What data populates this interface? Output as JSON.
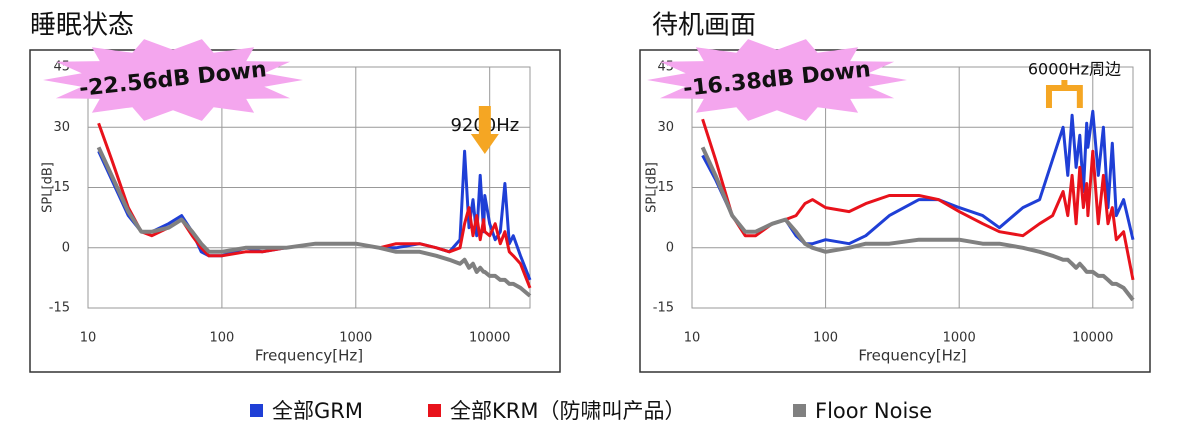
{
  "chart_data": [
    {
      "type": "line",
      "title": "睡眠状态",
      "xlabel": "Frequency[Hz]",
      "ylabel": "SPL[dB]",
      "log_x": true,
      "grid": true,
      "xlim": [
        10,
        20000
      ],
      "xticks": [
        10,
        100,
        1000,
        10000
      ],
      "ylim": [
        -15,
        45
      ],
      "yticks": [
        -15,
        0,
        15,
        30,
        45
      ],
      "callout": "-22.56dB Down",
      "marker_label": "9200Hz",
      "x": [
        12,
        15,
        20,
        25,
        30,
        40,
        50,
        60,
        70,
        80,
        100,
        150,
        200,
        300,
        500,
        700,
        1000,
        1500,
        2000,
        3000,
        4000,
        5000,
        6000,
        6500,
        7000,
        7500,
        8000,
        8500,
        9000,
        9200,
        10000,
        11000,
        12000,
        13000,
        14000,
        15000,
        17000,
        20000
      ],
      "series": [
        {
          "name": "全部GRM",
          "color": "#1f3fd6",
          "values": [
            24,
            17,
            8,
            4,
            4,
            6,
            8,
            4,
            -1,
            -2,
            -2,
            0,
            -1,
            0,
            1,
            1,
            1,
            0,
            0,
            1,
            0,
            -1,
            2,
            24,
            5,
            12,
            3,
            18,
            4,
            13,
            6,
            2,
            4,
            16,
            1,
            3,
            -2,
            -8
          ]
        },
        {
          "name": "全部KRM（防啸叫产品）",
          "color": "#e8121b",
          "values": [
            31,
            22,
            10,
            4,
            3,
            5,
            7,
            3,
            0,
            -2,
            -2,
            -1,
            -1,
            0,
            1,
            1,
            1,
            0,
            1,
            1,
            0,
            -1,
            0,
            6,
            10,
            3,
            8,
            2,
            7,
            4,
            3,
            6,
            1,
            4,
            -1,
            -2,
            -4,
            -10
          ]
        },
        {
          "name": "Floor Noise",
          "color": "#808080",
          "values": [
            25,
            18,
            9,
            4,
            4,
            5,
            7,
            4,
            1,
            -1,
            -1,
            0,
            0,
            0,
            1,
            1,
            1,
            0,
            -1,
            -1,
            -2,
            -3,
            -4,
            -3,
            -5,
            -4,
            -6,
            -5,
            -6,
            -6,
            -7,
            -7,
            -8,
            -8,
            -9,
            -9,
            -10,
            -12
          ]
        }
      ]
    },
    {
      "type": "line",
      "title": "待机画面",
      "xlabel": "Frequency[Hz]",
      "ylabel": "SPL[dB]",
      "log_x": true,
      "grid": true,
      "xlim": [
        10,
        20000
      ],
      "xticks": [
        10,
        100,
        1000,
        10000
      ],
      "ylim": [
        -15,
        45
      ],
      "yticks": [
        -15,
        0,
        15,
        30,
        45
      ],
      "callout": "-16.38dB Down",
      "marker_label": "6000Hz周边",
      "x": [
        12,
        15,
        20,
        25,
        30,
        40,
        50,
        60,
        70,
        80,
        100,
        150,
        200,
        300,
        500,
        700,
        1000,
        1500,
        2000,
        3000,
        4000,
        5000,
        6000,
        6500,
        7000,
        7500,
        8000,
        8500,
        9000,
        9200,
        10000,
        11000,
        12000,
        13000,
        14000,
        15000,
        17000,
        20000
      ],
      "series": [
        {
          "name": "全部GRM",
          "color": "#1f3fd6",
          "values": [
            23,
            17,
            8,
            4,
            4,
            6,
            7,
            3,
            1,
            1,
            2,
            1,
            3,
            8,
            12,
            12,
            10,
            8,
            5,
            10,
            12,
            22,
            30,
            18,
            33,
            20,
            28,
            14,
            31,
            25,
            34,
            18,
            30,
            10,
            26,
            8,
            12,
            2
          ]
        },
        {
          "name": "全部KRM（防啸叫产品）",
          "color": "#e8121b",
          "values": [
            32,
            22,
            8,
            3,
            3,
            6,
            7,
            8,
            11,
            12,
            10,
            9,
            11,
            13,
            13,
            12,
            9,
            6,
            4,
            3,
            6,
            8,
            14,
            8,
            18,
            6,
            20,
            10,
            16,
            8,
            24,
            6,
            18,
            6,
            10,
            2,
            4,
            -8
          ]
        },
        {
          "name": "Floor Noise",
          "color": "#808080",
          "values": [
            25,
            18,
            8,
            4,
            4,
            6,
            7,
            4,
            1,
            0,
            -1,
            0,
            1,
            1,
            2,
            2,
            2,
            1,
            1,
            0,
            -1,
            -2,
            -3,
            -3,
            -4,
            -5,
            -4,
            -5,
            -6,
            -6,
            -6,
            -7,
            -7,
            -8,
            -9,
            -9,
            -10,
            -13
          ]
        }
      ]
    }
  ]
}
